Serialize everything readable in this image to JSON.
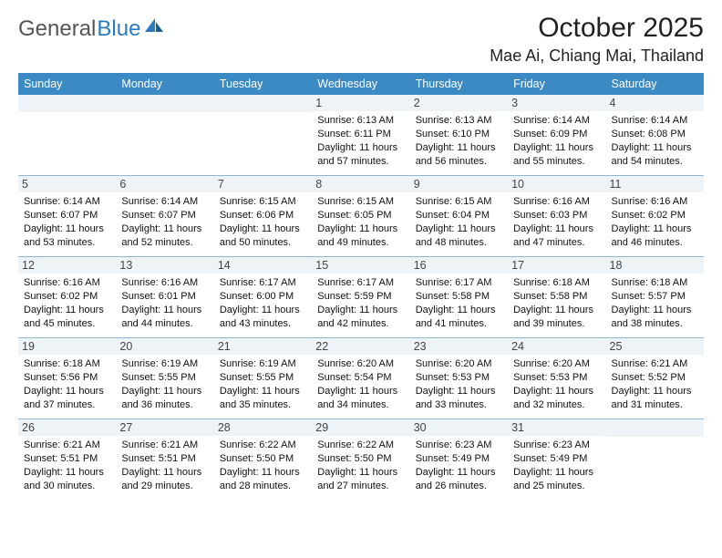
{
  "brand": {
    "part1": "General",
    "part2": "Blue"
  },
  "title": "October 2025",
  "location": "Mae Ai, Chiang Mai, Thailand",
  "colors": {
    "header_bg": "#3b8ac4",
    "grid_line": "#94b7d1",
    "num_bg": "#eef3f7",
    "brand_blue": "#2c7bbf",
    "text": "#111111"
  },
  "daynames": [
    "Sunday",
    "Monday",
    "Tuesday",
    "Wednesday",
    "Thursday",
    "Friday",
    "Saturday"
  ],
  "weeks": [
    [
      {
        "n": "",
        "sr": "",
        "ss": "",
        "d1": "",
        "d2": ""
      },
      {
        "n": "",
        "sr": "",
        "ss": "",
        "d1": "",
        "d2": ""
      },
      {
        "n": "",
        "sr": "",
        "ss": "",
        "d1": "",
        "d2": ""
      },
      {
        "n": "1",
        "sr": "Sunrise: 6:13 AM",
        "ss": "Sunset: 6:11 PM",
        "d1": "Daylight: 11 hours",
        "d2": "and 57 minutes."
      },
      {
        "n": "2",
        "sr": "Sunrise: 6:13 AM",
        "ss": "Sunset: 6:10 PM",
        "d1": "Daylight: 11 hours",
        "d2": "and 56 minutes."
      },
      {
        "n": "3",
        "sr": "Sunrise: 6:14 AM",
        "ss": "Sunset: 6:09 PM",
        "d1": "Daylight: 11 hours",
        "d2": "and 55 minutes."
      },
      {
        "n": "4",
        "sr": "Sunrise: 6:14 AM",
        "ss": "Sunset: 6:08 PM",
        "d1": "Daylight: 11 hours",
        "d2": "and 54 minutes."
      }
    ],
    [
      {
        "n": "5",
        "sr": "Sunrise: 6:14 AM",
        "ss": "Sunset: 6:07 PM",
        "d1": "Daylight: 11 hours",
        "d2": "and 53 minutes."
      },
      {
        "n": "6",
        "sr": "Sunrise: 6:14 AM",
        "ss": "Sunset: 6:07 PM",
        "d1": "Daylight: 11 hours",
        "d2": "and 52 minutes."
      },
      {
        "n": "7",
        "sr": "Sunrise: 6:15 AM",
        "ss": "Sunset: 6:06 PM",
        "d1": "Daylight: 11 hours",
        "d2": "and 50 minutes."
      },
      {
        "n": "8",
        "sr": "Sunrise: 6:15 AM",
        "ss": "Sunset: 6:05 PM",
        "d1": "Daylight: 11 hours",
        "d2": "and 49 minutes."
      },
      {
        "n": "9",
        "sr": "Sunrise: 6:15 AM",
        "ss": "Sunset: 6:04 PM",
        "d1": "Daylight: 11 hours",
        "d2": "and 48 minutes."
      },
      {
        "n": "10",
        "sr": "Sunrise: 6:16 AM",
        "ss": "Sunset: 6:03 PM",
        "d1": "Daylight: 11 hours",
        "d2": "and 47 minutes."
      },
      {
        "n": "11",
        "sr": "Sunrise: 6:16 AM",
        "ss": "Sunset: 6:02 PM",
        "d1": "Daylight: 11 hours",
        "d2": "and 46 minutes."
      }
    ],
    [
      {
        "n": "12",
        "sr": "Sunrise: 6:16 AM",
        "ss": "Sunset: 6:02 PM",
        "d1": "Daylight: 11 hours",
        "d2": "and 45 minutes."
      },
      {
        "n": "13",
        "sr": "Sunrise: 6:16 AM",
        "ss": "Sunset: 6:01 PM",
        "d1": "Daylight: 11 hours",
        "d2": "and 44 minutes."
      },
      {
        "n": "14",
        "sr": "Sunrise: 6:17 AM",
        "ss": "Sunset: 6:00 PM",
        "d1": "Daylight: 11 hours",
        "d2": "and 43 minutes."
      },
      {
        "n": "15",
        "sr": "Sunrise: 6:17 AM",
        "ss": "Sunset: 5:59 PM",
        "d1": "Daylight: 11 hours",
        "d2": "and 42 minutes."
      },
      {
        "n": "16",
        "sr": "Sunrise: 6:17 AM",
        "ss": "Sunset: 5:58 PM",
        "d1": "Daylight: 11 hours",
        "d2": "and 41 minutes."
      },
      {
        "n": "17",
        "sr": "Sunrise: 6:18 AM",
        "ss": "Sunset: 5:58 PM",
        "d1": "Daylight: 11 hours",
        "d2": "and 39 minutes."
      },
      {
        "n": "18",
        "sr": "Sunrise: 6:18 AM",
        "ss": "Sunset: 5:57 PM",
        "d1": "Daylight: 11 hours",
        "d2": "and 38 minutes."
      }
    ],
    [
      {
        "n": "19",
        "sr": "Sunrise: 6:18 AM",
        "ss": "Sunset: 5:56 PM",
        "d1": "Daylight: 11 hours",
        "d2": "and 37 minutes."
      },
      {
        "n": "20",
        "sr": "Sunrise: 6:19 AM",
        "ss": "Sunset: 5:55 PM",
        "d1": "Daylight: 11 hours",
        "d2": "and 36 minutes."
      },
      {
        "n": "21",
        "sr": "Sunrise: 6:19 AM",
        "ss": "Sunset: 5:55 PM",
        "d1": "Daylight: 11 hours",
        "d2": "and 35 minutes."
      },
      {
        "n": "22",
        "sr": "Sunrise: 6:20 AM",
        "ss": "Sunset: 5:54 PM",
        "d1": "Daylight: 11 hours",
        "d2": "and 34 minutes."
      },
      {
        "n": "23",
        "sr": "Sunrise: 6:20 AM",
        "ss": "Sunset: 5:53 PM",
        "d1": "Daylight: 11 hours",
        "d2": "and 33 minutes."
      },
      {
        "n": "24",
        "sr": "Sunrise: 6:20 AM",
        "ss": "Sunset: 5:53 PM",
        "d1": "Daylight: 11 hours",
        "d2": "and 32 minutes."
      },
      {
        "n": "25",
        "sr": "Sunrise: 6:21 AM",
        "ss": "Sunset: 5:52 PM",
        "d1": "Daylight: 11 hours",
        "d2": "and 31 minutes."
      }
    ],
    [
      {
        "n": "26",
        "sr": "Sunrise: 6:21 AM",
        "ss": "Sunset: 5:51 PM",
        "d1": "Daylight: 11 hours",
        "d2": "and 30 minutes."
      },
      {
        "n": "27",
        "sr": "Sunrise: 6:21 AM",
        "ss": "Sunset: 5:51 PM",
        "d1": "Daylight: 11 hours",
        "d2": "and 29 minutes."
      },
      {
        "n": "28",
        "sr": "Sunrise: 6:22 AM",
        "ss": "Sunset: 5:50 PM",
        "d1": "Daylight: 11 hours",
        "d2": "and 28 minutes."
      },
      {
        "n": "29",
        "sr": "Sunrise: 6:22 AM",
        "ss": "Sunset: 5:50 PM",
        "d1": "Daylight: 11 hours",
        "d2": "and 27 minutes."
      },
      {
        "n": "30",
        "sr": "Sunrise: 6:23 AM",
        "ss": "Sunset: 5:49 PM",
        "d1": "Daylight: 11 hours",
        "d2": "and 26 minutes."
      },
      {
        "n": "31",
        "sr": "Sunrise: 6:23 AM",
        "ss": "Sunset: 5:49 PM",
        "d1": "Daylight: 11 hours",
        "d2": "and 25 minutes."
      },
      {
        "n": "",
        "sr": "",
        "ss": "",
        "d1": "",
        "d2": ""
      }
    ]
  ]
}
